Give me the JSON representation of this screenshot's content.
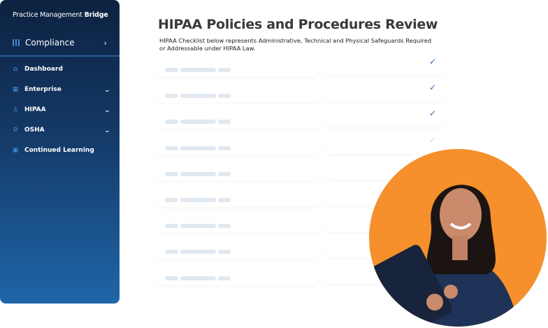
{
  "brand": {
    "name_light": "Practice Management ",
    "name_bold": "Bridge"
  },
  "compliance": {
    "label": "Compliance",
    "chevron": "›"
  },
  "nav": [
    {
      "label": "Dashboard",
      "icon": "home-icon",
      "glyph": "⌂",
      "chevron": ""
    },
    {
      "label": "Enterprise",
      "icon": "calendar-icon",
      "glyph": "▦",
      "chevron": "⌄"
    },
    {
      "label": "HIPAA",
      "icon": "user-badge-icon",
      "glyph": "♙",
      "chevron": "⌄"
    },
    {
      "label": "OSHA",
      "icon": "user-gear-icon",
      "glyph": "⚙",
      "chevron": "⌄"
    },
    {
      "label": "Continued Learning",
      "icon": "chart-icon",
      "glyph": "▣",
      "chevron": ""
    }
  ],
  "main": {
    "title": "HIPAA Policies and Procedures Review",
    "description": "HIPAA Checklist below represents Administrative, Technical and Physical Safeguards Required or Addressable under HIPAA Law.",
    "rows": [
      {
        "checked": true
      },
      {
        "checked": true
      },
      {
        "checked": true
      },
      {
        "checked": false
      },
      {},
      {},
      {},
      {},
      {}
    ]
  },
  "colors": {
    "accent": "#2a6fc0",
    "photo_bg": "#f5902c",
    "sidebar_top": "#0c2240",
    "sidebar_bottom": "#1f66a8"
  }
}
